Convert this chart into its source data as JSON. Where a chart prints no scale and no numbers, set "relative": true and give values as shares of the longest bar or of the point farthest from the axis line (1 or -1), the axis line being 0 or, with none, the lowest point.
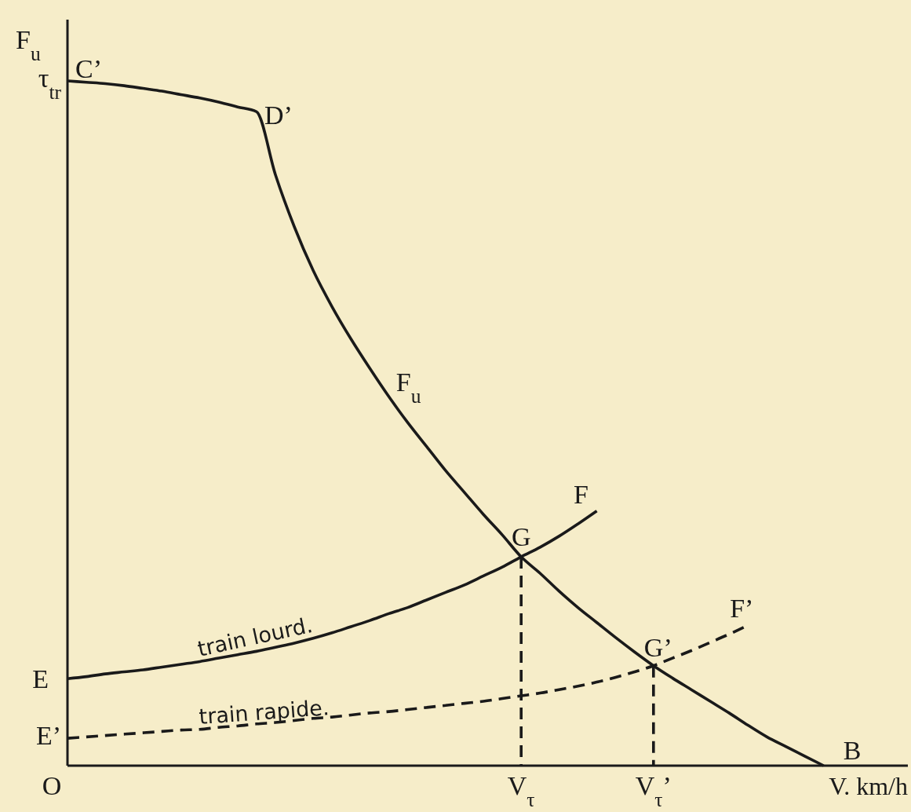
{
  "chart_data": {
    "type": "line",
    "relative": true,
    "ylabel": "F$_{u}$",
    "xlabel": "V. km/h",
    "categories": [
      null,
      null,
      null,
      null,
      null,
      null,
      null,
      null,
      null,
      null,
      null,
      null,
      null,
      null,
      null,
      null,
      null,
      null,
      null,
      null,
      null,
      null,
      null,
      null,
      "V$_{τ}$",
      null,
      null,
      null,
      null,
      null,
      null,
      "V$_{τ}$’",
      null,
      null,
      null,
      null,
      null,
      null,
      null,
      null,
      null,
      null,
      null,
      null,
      null
    ],
    "series": [
      {
        "name": "F$_{u}$",
        "color": "#1a1a1a",
        "values": [
          1,
          0.998,
          0.996,
          0.993,
          0.989,
          0.985,
          0.98,
          0.975,
          0.969,
          0.962,
          0.955,
          0.863,
          0.787,
          0.723,
          0.67,
          0.623,
          0.58,
          0.539,
          0.501,
          0.466,
          0.431,
          0.399,
          0.367,
          0.337,
          0.305,
          0.281,
          0.255,
          0.231,
          0.209,
          0.187,
          0.166,
          0.146,
          0.128,
          0.111,
          0.094,
          0.077,
          0.059,
          0.042,
          0.028,
          0.014,
          0,
          null,
          null,
          null,
          null
        ]
      },
      {
        "name": "train lourd.",
        "color": "#1a1a1a",
        "values": [
          0.127,
          0.13,
          0.134,
          0.137,
          0.14,
          0.144,
          0.148,
          0.152,
          0.157,
          0.162,
          0.167,
          0.173,
          0.179,
          0.186,
          0.194,
          0.203,
          0.212,
          0.222,
          0.231,
          0.242,
          0.253,
          0.264,
          0.277,
          0.29,
          0.305,
          0.319,
          0.335,
          0.353,
          0.372,
          null,
          null,
          null,
          null,
          null,
          null,
          null,
          null,
          null,
          null,
          null,
          null,
          null,
          null,
          null,
          null
        ]
      },
      {
        "name": "train rapide.",
        "color": "#1a1a1a",
        "line_style": "dashed",
        "values": [
          0.04,
          0.042,
          0.044,
          0.046,
          0.048,
          0.05,
          0.052,
          0.053,
          0.056,
          0.058,
          0.061,
          0.063,
          0.066,
          0.069,
          0.071,
          0.074,
          0.077,
          0.079,
          0.082,
          0.085,
          0.088,
          0.091,
          0.094,
          0.098,
          0.102,
          0.106,
          0.111,
          0.116,
          0.122,
          0.129,
          0.137,
          0.146,
          0.157,
          0.168,
          0.18,
          0.192,
          0.205,
          null,
          null,
          null,
          null,
          null,
          null,
          null,
          null
        ]
      },
      {
        "color": "#1a1a1a",
        "line_style": "dashed",
        "x": [
          "V$_{τ}$",
          "V$_{τ}$"
        ],
        "values": [
          0.305,
          0
        ]
      },
      {
        "color": "#1a1a1a",
        "line_style": "dashed",
        "x": [
          "V$_{τ}$’",
          "V$_{τ}$’"
        ],
        "values": [
          0.146,
          0
        ]
      }
    ],
    "annotations": [
      "τ$_{tr}$",
      "C’",
      "D’",
      {
        "text": "G",
        "x": "V$_{τ}$",
        "y": 0.305
      },
      "F",
      {
        "text": "G’",
        "x": "V$_{τ}$’",
        "y": 0.146
      },
      "F’",
      "B",
      "E",
      "E’",
      "O"
    ]
  }
}
